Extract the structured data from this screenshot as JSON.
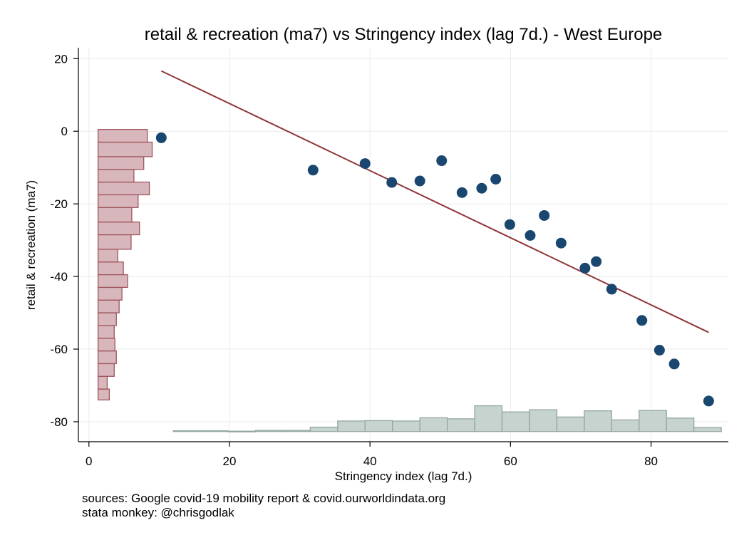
{
  "chart_data": {
    "type": "scatter",
    "title": "retail & recreation (ma7) vs Stringency index (lag 7d.) - West Europe",
    "xlabel": "Stringency index (lag 7d.)",
    "ylabel": "retail & recreation (ma7)",
    "xlim": [
      -1.5,
      91
    ],
    "ylim": [
      -85.5,
      23
    ],
    "xticks": [
      0,
      20,
      40,
      60,
      80
    ],
    "yticks": [
      20,
      0,
      -20,
      -40,
      -60,
      -80
    ],
    "grid": true,
    "points": [
      {
        "x": 10.3,
        "y": -1.8
      },
      {
        "x": 31.9,
        "y": -10.7
      },
      {
        "x": 39.3,
        "y": -8.9
      },
      {
        "x": 43.1,
        "y": -14.1
      },
      {
        "x": 47.1,
        "y": -13.7
      },
      {
        "x": 50.2,
        "y": -8.1
      },
      {
        "x": 53.1,
        "y": -16.9
      },
      {
        "x": 55.9,
        "y": -15.7
      },
      {
        "x": 57.9,
        "y": -13.2
      },
      {
        "x": 59.9,
        "y": -25.7
      },
      {
        "x": 62.8,
        "y": -28.7
      },
      {
        "x": 64.8,
        "y": -23.2
      },
      {
        "x": 67.2,
        "y": -30.8
      },
      {
        "x": 70.6,
        "y": -37.7
      },
      {
        "x": 72.2,
        "y": -35.9
      },
      {
        "x": 74.4,
        "y": -43.5
      },
      {
        "x": 78.7,
        "y": -52.1
      },
      {
        "x": 81.2,
        "y": -60.3
      },
      {
        "x": 83.3,
        "y": -64.1
      },
      {
        "x": 88.2,
        "y": -74.3
      }
    ],
    "fit_line": {
      "x": [
        10.3,
        88.2
      ],
      "y": [
        16.6,
        -55.4
      ]
    },
    "histogram_y": {
      "base_x": 1.3,
      "bins": [
        {
          "y0": -74,
          "y1": -71,
          "x1": 2.9
        },
        {
          "y0": -71,
          "y1": -67.5,
          "x1": 2.6
        },
        {
          "y0": -67.5,
          "y1": -64,
          "x1": 3.6
        },
        {
          "y0": -64,
          "y1": -60.5,
          "x1": 3.9
        },
        {
          "y0": -60.5,
          "y1": -57,
          "x1": 3.7
        },
        {
          "y0": -57,
          "y1": -53.5,
          "x1": 3.6
        },
        {
          "y0": -53.5,
          "y1": -50,
          "x1": 3.9
        },
        {
          "y0": -50,
          "y1": -46.5,
          "x1": 4.3
        },
        {
          "y0": -46.5,
          "y1": -43,
          "x1": 4.7
        },
        {
          "y0": -43,
          "y1": -39.5,
          "x1": 5.5
        },
        {
          "y0": -39.5,
          "y1": -36,
          "x1": 4.9
        },
        {
          "y0": -36,
          "y1": -32.5,
          "x1": 4.1
        },
        {
          "y0": -32.5,
          "y1": -28.5,
          "x1": 6.0
        },
        {
          "y0": -28.5,
          "y1": -25,
          "x1": 7.2
        },
        {
          "y0": -25,
          "y1": -21,
          "x1": 6.1
        },
        {
          "y0": -21,
          "y1": -17.5,
          "x1": 7.0
        },
        {
          "y0": -17.5,
          "y1": -14,
          "x1": 8.6
        },
        {
          "y0": -14,
          "y1": -10.5,
          "x1": 6.4
        },
        {
          "y0": -10.5,
          "y1": -7,
          "x1": 7.8
        },
        {
          "y0": -7,
          "y1": -3,
          "x1": 9.0
        },
        {
          "y0": -3,
          "y1": 0.5,
          "x1": 8.3
        }
      ]
    },
    "histogram_x": {
      "base_y": -82.7,
      "bins": [
        {
          "x0": 12.0,
          "x1": 19.8,
          "y1": -82.5
        },
        {
          "x0": 19.8,
          "x1": 23.7,
          "y1": -82.6
        },
        {
          "x0": 23.7,
          "x1": 27.6,
          "y1": -82.4
        },
        {
          "x0": 27.6,
          "x1": 31.5,
          "y1": -82.4
        },
        {
          "x0": 31.5,
          "x1": 35.4,
          "y1": -81.5
        },
        {
          "x0": 35.4,
          "x1": 39.3,
          "y1": -79.8
        },
        {
          "x0": 39.3,
          "x1": 43.2,
          "y1": -79.7
        },
        {
          "x0": 43.2,
          "x1": 47.1,
          "y1": -79.8
        },
        {
          "x0": 47.1,
          "x1": 51.0,
          "y1": -78.9
        },
        {
          "x0": 51.0,
          "x1": 54.9,
          "y1": -79.2
        },
        {
          "x0": 54.9,
          "x1": 58.8,
          "y1": -75.6
        },
        {
          "x0": 58.8,
          "x1": 62.7,
          "y1": -77.3
        },
        {
          "x0": 62.7,
          "x1": 66.6,
          "y1": -76.7
        },
        {
          "x0": 66.6,
          "x1": 70.5,
          "y1": -78.7
        },
        {
          "x0": 70.5,
          "x1": 74.4,
          "y1": -77.0
        },
        {
          "x0": 74.4,
          "x1": 78.3,
          "y1": -79.5
        },
        {
          "x0": 78.3,
          "x1": 82.2,
          "y1": -76.9
        },
        {
          "x0": 82.2,
          "x1": 86.1,
          "y1": -79.0
        },
        {
          "x0": 86.1,
          "x1": 90.0,
          "y1": -81.6
        }
      ]
    },
    "colors": {
      "points": "#1a476f",
      "fit_line": "#90353b",
      "hist_y_fill": "#d7b7bc",
      "hist_y_stroke": "#a0545c",
      "hist_x_fill": "#c6d3cf",
      "hist_x_stroke": "#93a79f",
      "grid": "#eaeaea"
    }
  },
  "notes": {
    "line1": "sources: Google covid-19 mobility report & covid.ourworldindata.org",
    "line2": "stata monkey: @chrisgodlak"
  }
}
